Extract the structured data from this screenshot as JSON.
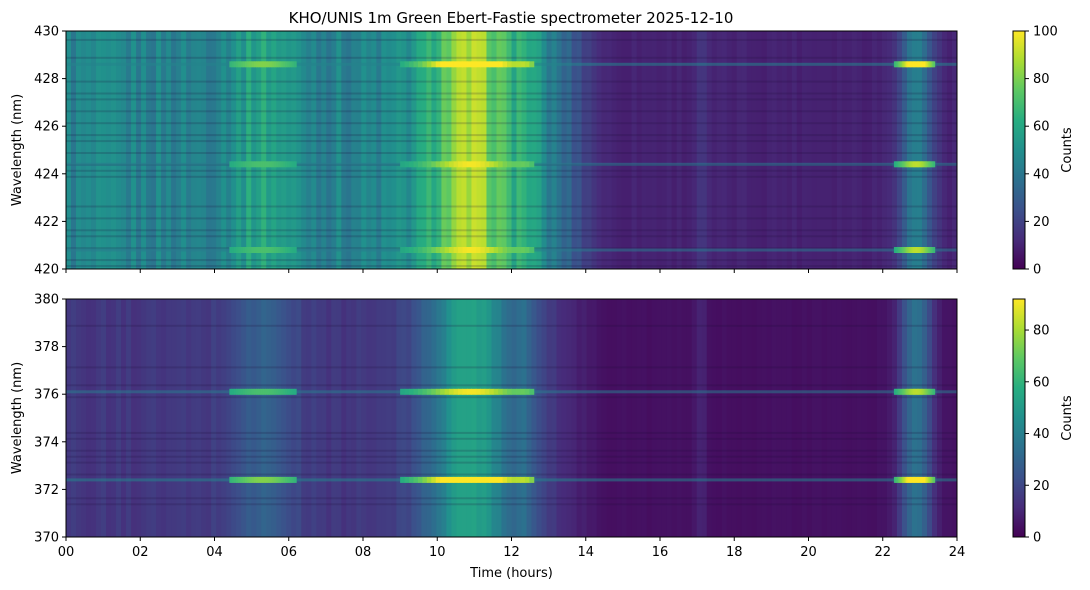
{
  "title": "KHO/UNIS 1m Green Ebert-Fastie spectrometer 2025-12-10",
  "colormap": "viridis",
  "chart_data": [
    {
      "type": "heatmap",
      "panel": "top",
      "ylabel": "Wavelength (nm)",
      "xlabel": "",
      "ylim": [
        420,
        430
      ],
      "y_ticks": [
        "420",
        "422",
        "424",
        "426",
        "428",
        "430"
      ],
      "xlim": [
        0,
        24
      ],
      "x_tick_labels_shown": false,
      "colorbar": {
        "label": "Counts",
        "min": 0,
        "max": 100,
        "ticks": [
          "0",
          "20",
          "40",
          "60",
          "80",
          "100"
        ]
      },
      "emission_lines_nm": [
        428.6,
        424.4,
        420.8
      ],
      "bright_intervals_hours": [
        [
          4.4,
          6.2
        ],
        [
          9.0,
          12.6
        ],
        [
          22.3,
          23.4
        ]
      ],
      "baseline_counts": {
        "00-13h": 45,
        "13-24h": 10
      }
    },
    {
      "type": "heatmap",
      "panel": "bottom",
      "ylabel": "Wavelength (nm)",
      "xlabel": "Time (hours)",
      "ylim": [
        370,
        380
      ],
      "y_ticks": [
        "370",
        "372",
        "374",
        "376",
        "378",
        "380"
      ],
      "xlim": [
        0,
        24
      ],
      "x_ticks": [
        "00",
        "02",
        "04",
        "06",
        "08",
        "10",
        "12",
        "14",
        "16",
        "18",
        "20",
        "22",
        "24"
      ],
      "colorbar": {
        "label": "Counts",
        "min": 0,
        "max": 92,
        "ticks": [
          "0",
          "20",
          "40",
          "60",
          "80"
        ]
      },
      "emission_lines_nm": [
        372.4,
        376.1
      ],
      "bright_intervals_hours": [
        [
          4.4,
          6.2
        ],
        [
          9.0,
          12.6
        ],
        [
          22.3,
          23.4
        ]
      ],
      "baseline_counts": {
        "00-13h": 15,
        "13-24h": 4
      }
    }
  ]
}
